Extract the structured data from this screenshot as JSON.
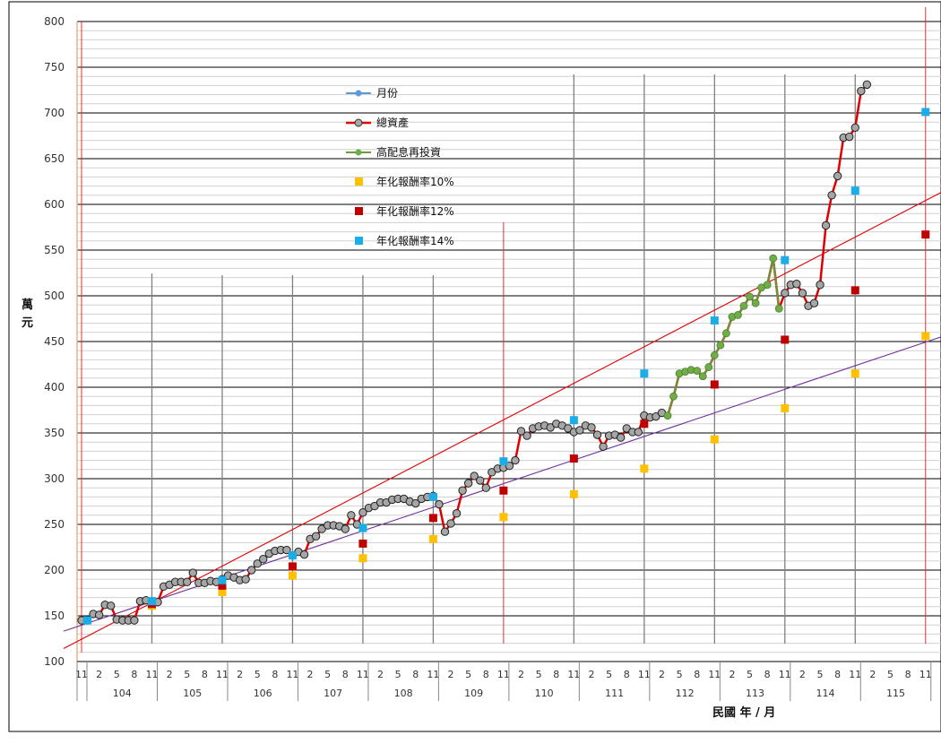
{
  "chart_data": {
    "type": "line",
    "ylabel": "萬元",
    "xlabel": "民國  年 / 月",
    "ylim": [
      100,
      800
    ],
    "y_ticks": [
      "100",
      "150",
      "200",
      "250",
      "300",
      "350",
      "400",
      "450",
      "500",
      "550",
      "600",
      "650",
      "700",
      "750",
      "800"
    ],
    "years": [
      "104",
      "105",
      "106",
      "107",
      "108",
      "109",
      "110",
      "111",
      "112",
      "113",
      "114",
      "115"
    ],
    "month_ticks": [
      "11",
      "2",
      "5",
      "8",
      "11",
      "2",
      "5",
      "8",
      "11",
      "2",
      "5",
      "8",
      "11",
      "2",
      "5",
      "8",
      "11",
      "2",
      "5",
      "8",
      "11",
      "2",
      "5",
      "8",
      "11",
      "2",
      "5",
      "8",
      "11",
      "2",
      "5",
      "8",
      "11",
      "2",
      "5",
      "8",
      "11",
      "2",
      "5",
      "8",
      "11",
      "2",
      "5",
      "8",
      "11",
      "2",
      "5",
      "8",
      "11",
      "2"
    ],
    "grid": true,
    "legend": {
      "placement": "top-center",
      "entries": [
        {
          "name": "月份",
          "color": "#5B9BD5",
          "kind": "line-marker"
        },
        {
          "name": "總資產",
          "color": "#E00000",
          "kind": "line-marker"
        },
        {
          "name": "高配息再投資",
          "color": "#6B9A3A",
          "kind": "line-marker"
        },
        {
          "name": "年化報酬率10%",
          "color": "#FFC000",
          "kind": "square"
        },
        {
          "name": "年化報酬率12%",
          "color": "#C00000",
          "kind": "square"
        },
        {
          "name": "年化報酬率14%",
          "color": "#1AAEE8",
          "kind": "square"
        }
      ]
    },
    "total_assets": {
      "name": "總資產",
      "start_month_index": 0,
      "values": [
        145,
        145,
        152,
        151,
        162,
        161,
        146,
        145,
        145,
        145,
        166,
        167,
        166,
        165,
        182,
        184,
        187,
        187,
        187,
        197,
        186,
        186,
        188,
        187,
        190,
        194,
        192,
        189,
        190,
        200,
        207,
        212,
        218,
        221,
        222,
        222,
        216,
        220,
        217,
        234,
        237,
        245,
        249,
        249,
        248,
        245,
        260,
        250,
        263,
        268,
        270,
        274,
        274,
        277,
        278,
        278,
        275,
        273,
        278,
        280,
        281,
        272,
        242,
        251,
        262,
        287,
        295,
        303,
        298,
        290,
        307,
        311,
        312,
        314,
        320,
        352,
        347,
        355,
        357,
        358,
        356,
        360,
        358,
        355,
        351,
        353,
        358,
        356,
        348,
        335,
        347,
        348,
        345,
        355,
        351,
        351,
        369,
        367,
        368,
        372,
        369,
        390,
        415,
        417,
        419,
        418,
        412,
        422,
        435,
        446,
        459,
        477,
        479,
        489,
        499,
        492,
        509,
        512,
        541,
        486,
        503,
        512,
        513,
        503,
        489,
        492,
        512,
        577,
        610,
        631,
        673,
        674,
        684,
        724,
        731
      ]
    },
    "high_dividend_segments": [
      {
        "start_month_index": 100,
        "end_month_index": 119
      }
    ],
    "return_10": {
      "name": "年化報酬率10%",
      "points": [
        {
          "m": 12,
          "v": 161
        },
        {
          "m": 24,
          "v": 176
        },
        {
          "m": 36,
          "v": 194
        },
        {
          "m": 48,
          "v": 213
        },
        {
          "m": 60,
          "v": 234
        },
        {
          "m": 72,
          "v": 258
        },
        {
          "m": 84,
          "v": 283
        },
        {
          "m": 96,
          "v": 311
        },
        {
          "m": 108,
          "v": 343
        },
        {
          "m": 120,
          "v": 377
        },
        {
          "m": 132,
          "v": 415
        },
        {
          "m": 144,
          "v": 456
        }
      ]
    },
    "return_12": {
      "name": "年化報酬率12%",
      "points": [
        {
          "m": 12,
          "v": 163
        },
        {
          "m": 24,
          "v": 183
        },
        {
          "m": 36,
          "v": 204
        },
        {
          "m": 48,
          "v": 229
        },
        {
          "m": 60,
          "v": 257
        },
        {
          "m": 72,
          "v": 287
        },
        {
          "m": 84,
          "v": 322
        },
        {
          "m": 96,
          "v": 360
        },
        {
          "m": 108,
          "v": 403
        },
        {
          "m": 120,
          "v": 452
        },
        {
          "m": 132,
          "v": 506
        },
        {
          "m": 144,
          "v": 567
        }
      ]
    },
    "return_14": {
      "name": "年化報酬率14%",
      "points": [
        {
          "m": 1,
          "v": 145
        },
        {
          "m": 12,
          "v": 166
        },
        {
          "m": 24,
          "v": 189
        },
        {
          "m": 36,
          "v": 216
        },
        {
          "m": 48,
          "v": 246
        },
        {
          "m": 60,
          "v": 280
        },
        {
          "m": 72,
          "v": 319
        },
        {
          "m": 84,
          "v": 364
        },
        {
          "m": 96,
          "v": 415
        },
        {
          "m": 108,
          "v": 473
        },
        {
          "m": 120,
          "v": 539
        },
        {
          "m": 132,
          "v": 615
        },
        {
          "m": 144,
          "v": 701
        }
      ]
    },
    "trendlines": [
      {
        "color": "#E00000",
        "from": {
          "m": 0,
          "v": 123
        },
        "to": {
          "m": 147,
          "v": 613
        }
      },
      {
        "color": "#7030A0",
        "from": {
          "m": 0,
          "v": 142
        },
        "to": {
          "m": 147,
          "v": 455
        }
      }
    ]
  }
}
